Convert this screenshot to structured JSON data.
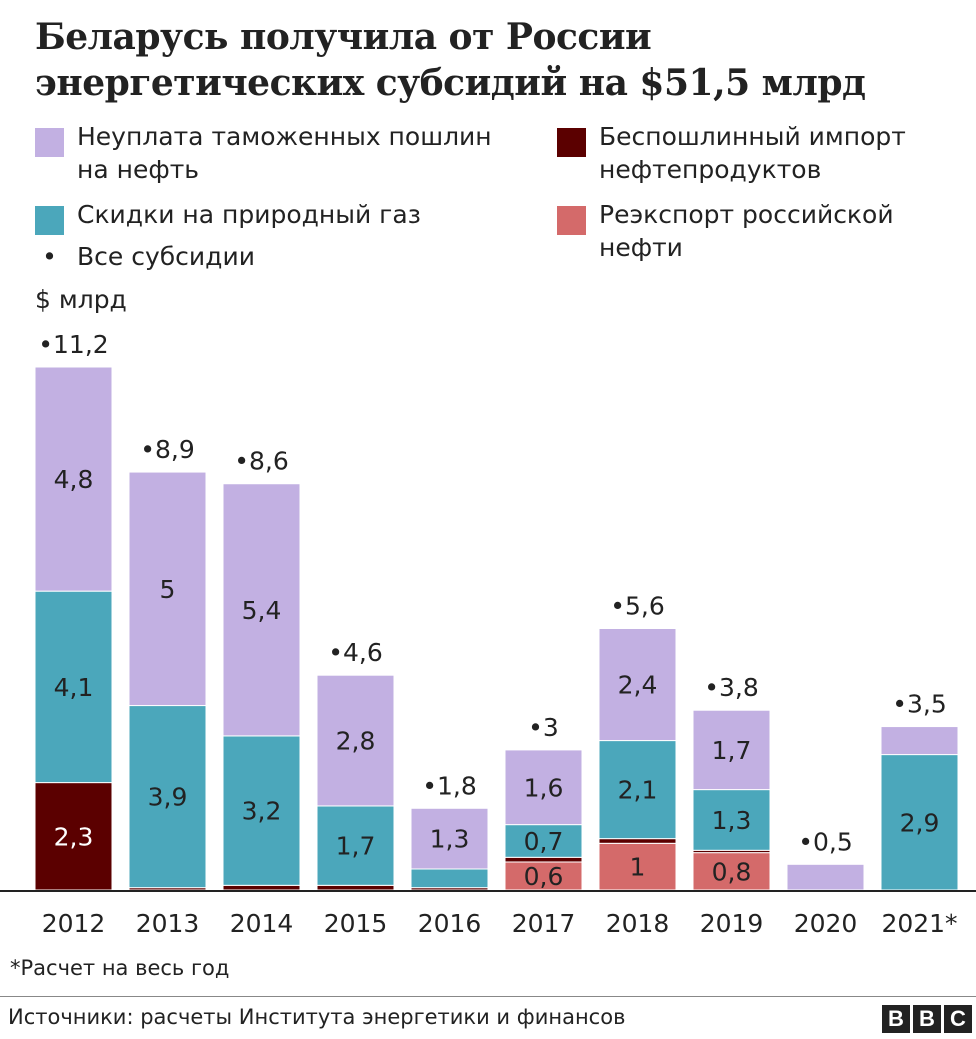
{
  "title": "Беларусь получила от России энергетических субсидий на $51,5 млрд",
  "legend": [
    {
      "key": "oil_duties",
      "label": "Неуплата таможенных пошлин\nна нефть",
      "color": "#c2b0e2"
    },
    {
      "key": "gas",
      "label": "Скидки на природный газ",
      "color": "#4ba7bb"
    },
    {
      "key": "total",
      "label": "Все субсидии",
      "marker": "•"
    },
    {
      "key": "products",
      "label": "Беспошлинный импорт\nнефтепродуктов",
      "color": "#5b0000"
    },
    {
      "key": "reexport",
      "label": "Реэкспорт российской\nнефти",
      "color": "#d46a6a"
    }
  ],
  "unit_label": "$ млрд",
  "footnote": "*Расчет на весь год",
  "source": "Источники:  расчеты Института энергетики и финансов",
  "brand": [
    "B",
    "B",
    "C"
  ],
  "chart_data": {
    "type": "bar",
    "stacked": true,
    "title": "Беларусь получила от России энергетических субсидий на $51,5 млрд",
    "xlabel": "",
    "ylabel": "$ млрд",
    "ylim": [
      0,
      11.2
    ],
    "grid": false,
    "legend_position": "top",
    "categories": [
      "2012",
      "2013",
      "2014",
      "2015",
      "2016",
      "2017",
      "2018",
      "2019",
      "2020",
      "2021*"
    ],
    "totals": [
      11.2,
      8.9,
      8.6,
      4.6,
      1.8,
      3,
      5.6,
      3.8,
      0.5,
      3.5
    ],
    "total_labels": [
      "11,2",
      "8,9",
      "8,6",
      "4,6",
      "1,8",
      "3",
      "5,6",
      "3,8",
      "0,5",
      "3,5"
    ],
    "series": [
      {
        "name": "Реэкспорт российской нефти",
        "key": "reexport",
        "color": "#d46a6a",
        "values": [
          0,
          0,
          0,
          0,
          0,
          0.6,
          1,
          0.8,
          0,
          0
        ],
        "labels": [
          "",
          "",
          "",
          "",
          "",
          "0,6",
          "1",
          "0,8",
          "",
          ""
        ],
        "label_color": "#222222"
      },
      {
        "name": "Беспошлинный импорт нефтепродуктов",
        "key": "products",
        "color": "#5b0000",
        "values": [
          2.3,
          0.05,
          0.1,
          0.1,
          0.05,
          0.1,
          0.1,
          0.05,
          0,
          0
        ],
        "labels": [
          "2,3",
          "",
          "",
          "",
          "",
          "",
          "",
          "",
          "",
          ""
        ],
        "label_color": "#ffffff"
      },
      {
        "name": "Скидки на природный газ",
        "key": "gas",
        "color": "#4ba7bb",
        "values": [
          4.1,
          3.9,
          3.2,
          1.7,
          0.4,
          0.7,
          2.1,
          1.3,
          -0.05,
          2.9
        ],
        "labels": [
          "4,1",
          "3,9",
          "3,2",
          "1,7",
          "",
          "0,7",
          "2,1",
          "1,3",
          "",
          "2,9"
        ],
        "label_color": "#222222"
      },
      {
        "name": "Неуплата таможенных пошлин на нефть",
        "key": "oil_duties",
        "color": "#c2b0e2",
        "values": [
          4.8,
          5,
          5.4,
          2.8,
          1.3,
          1.6,
          2.4,
          1.7,
          0.55,
          0.6
        ],
        "labels": [
          "4,8",
          "5",
          "5,4",
          "2,8",
          "1,3",
          "1,6",
          "2,4",
          "1,7",
          "",
          ""
        ],
        "label_color": "#222222"
      }
    ]
  }
}
